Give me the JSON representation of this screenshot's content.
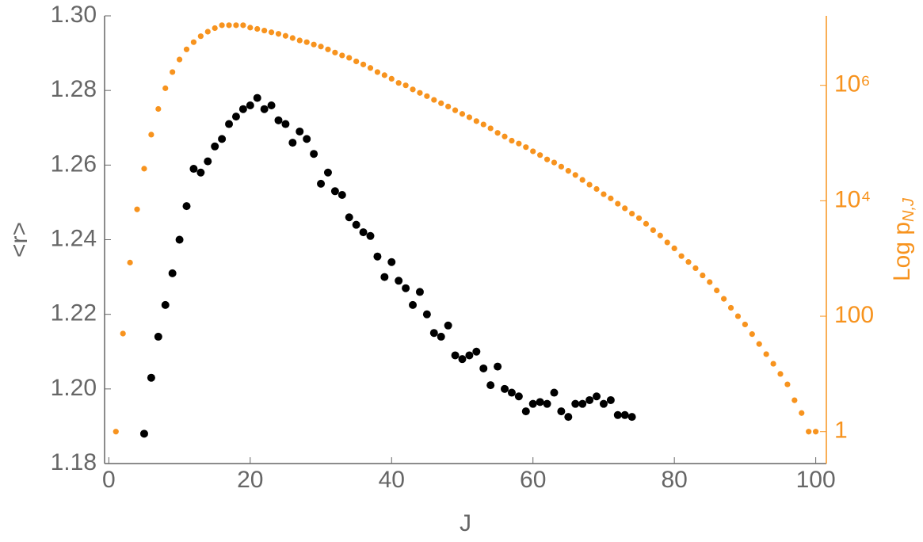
{
  "chart_data": {
    "type": "scatter",
    "xlabel": "J",
    "ylabel": "<r>",
    "y2label": "Log p",
    "y2label_subscript": "N,J",
    "xlim": [
      -0.6,
      101.5
    ],
    "xticks": [
      0,
      20,
      40,
      60,
      80,
      100
    ],
    "ylim": [
      1.18,
      1.3
    ],
    "yticks": [
      {
        "value": 1.18,
        "label": "1.18"
      },
      {
        "value": 1.2,
        "label": "1.20"
      },
      1.22,
      1.24,
      1.26,
      1.28,
      {
        "value": 1.3,
        "label": "1.30"
      }
    ],
    "y2lim": [
      0.28,
      16000000
    ],
    "y2scale": "log",
    "y2ticks": [
      1,
      100,
      {
        "value": 10000,
        "label": "10⁴"
      },
      {
        "value": 1000000,
        "label": "10⁶"
      }
    ],
    "series": [
      {
        "color": "#000000",
        "x": [
          5,
          6,
          7,
          8,
          9,
          10,
          11,
          12,
          13,
          14,
          15,
          16,
          17,
          18,
          19,
          20,
          21,
          22,
          23,
          24,
          25,
          26,
          27,
          28,
          29,
          30,
          31,
          32,
          33,
          34,
          35,
          36,
          37,
          38,
          39,
          40,
          41,
          42,
          43,
          44,
          45,
          46,
          47,
          48,
          49,
          50,
          51,
          52,
          53,
          54,
          55,
          56,
          57,
          58,
          59,
          60,
          61,
          62,
          63,
          64,
          65,
          66,
          67,
          68,
          69,
          70,
          71,
          72,
          73,
          74
        ],
        "values": [
          1.188,
          1.203,
          1.214,
          1.2225,
          1.231,
          1.24,
          1.249,
          1.259,
          1.258,
          1.261,
          1.265,
          1.267,
          1.271,
          1.273,
          1.275,
          1.276,
          1.278,
          1.275,
          1.276,
          1.272,
          1.271,
          1.266,
          1.269,
          1.267,
          1.263,
          1.255,
          1.258,
          1.253,
          1.252,
          1.246,
          1.244,
          1.242,
          1.241,
          1.2355,
          1.23,
          1.234,
          1.229,
          1.227,
          1.2225,
          1.226,
          1.22,
          1.215,
          1.214,
          1.217,
          1.209,
          1.208,
          1.209,
          1.21,
          1.2055,
          1.201,
          1.206,
          1.2,
          1.199,
          1.198,
          1.194,
          1.196,
          1.1965,
          1.196,
          1.199,
          1.194,
          1.1925,
          1.196,
          1.196,
          1.197,
          1.198,
          1.196,
          1.197,
          1.193,
          1.193,
          1.1925
        ]
      },
      {
        "color": "#f7931e",
        "axis": "y2",
        "x": [
          1,
          2,
          3,
          4,
          5,
          6,
          7,
          8,
          9,
          10,
          11,
          12,
          13,
          14,
          15,
          16,
          17,
          18,
          19,
          20,
          21,
          22,
          23,
          24,
          25,
          26,
          27,
          28,
          29,
          30,
          31,
          32,
          33,
          34,
          35,
          36,
          37,
          38,
          39,
          40,
          41,
          42,
          43,
          44,
          45,
          46,
          47,
          48,
          49,
          50,
          51,
          52,
          53,
          54,
          55,
          56,
          57,
          58,
          59,
          60,
          61,
          62,
          63,
          64,
          65,
          66,
          67,
          68,
          69,
          70,
          71,
          72,
          73,
          74,
          75,
          76,
          77,
          78,
          79,
          80,
          81,
          82,
          83,
          84,
          85,
          86,
          87,
          88,
          89,
          90,
          91,
          92,
          93,
          94,
          95,
          96,
          97,
          98,
          99,
          100
        ],
        "values": [
          1,
          50,
          850,
          7100,
          36000,
          140000,
          390000,
          890000,
          1700000,
          2800000,
          4200000,
          5600000,
          7100000,
          8500000,
          9800000,
          11000000,
          11000000,
          11000000,
          11000000,
          10000000,
          9500000,
          8900000,
          8300000,
          7800000,
          7200000,
          6600000,
          6000000,
          5600000,
          5100000,
          4700000,
          4200000,
          3700000,
          3300000,
          3000000,
          2600000,
          2300000,
          2000000,
          1700000,
          1500000,
          1300000,
          1100000,
          1000000,
          850000,
          740000,
          650000,
          560000,
          490000,
          430000,
          370000,
          320000,
          280000,
          240000,
          210000,
          180000,
          150000,
          130000,
          110000,
          98000,
          85000,
          72000,
          62000,
          52000,
          46000,
          39000,
          33000,
          28000,
          23000,
          19000,
          16000,
          13000,
          11000,
          8900,
          7400,
          6000,
          5000,
          4000,
          3100,
          2500,
          1900,
          1500,
          1100,
          870,
          680,
          510,
          390,
          280,
          200,
          140,
          100,
          72,
          49,
          33,
          22,
          15,
          10,
          6.6,
          3.5,
          2.1,
          1,
          1
        ]
      }
    ]
  }
}
